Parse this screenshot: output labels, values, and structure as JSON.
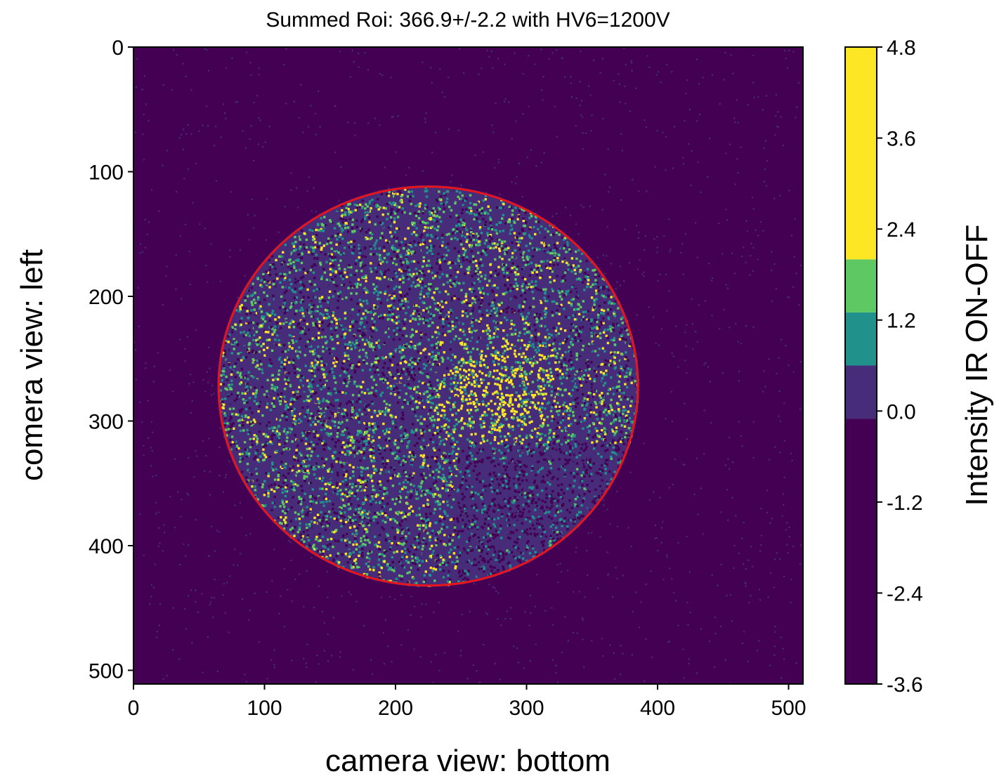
{
  "chart_data": {
    "type": "heatmap",
    "title": "Summed Roi: 366.9+/-2.2 with HV6=1200V",
    "xlabel": "camera view: bottom",
    "ylabel": "comera view: left",
    "xlim": [
      0,
      511
    ],
    "ylim": [
      511,
      0
    ],
    "xticks": [
      "0",
      "100",
      "200",
      "300",
      "400",
      "500"
    ],
    "yticks": [
      "0",
      "100",
      "200",
      "300",
      "400",
      "500"
    ],
    "grid": false,
    "colorbar": {
      "label": "Intensity IR ON-OFF",
      "range": [
        -3.6,
        4.8
      ],
      "ticks": [
        "4.8",
        "3.6",
        "2.4",
        "1.2",
        "0.0",
        "-1.2",
        "-2.4",
        "-3.6"
      ],
      "bands": [
        {
          "from": -3.6,
          "to": -0.1,
          "color": "#440154"
        },
        {
          "from": -0.1,
          "to": 0.6,
          "color": "#472c7a"
        },
        {
          "from": 0.6,
          "to": 1.3,
          "color": "#21918c"
        },
        {
          "from": 1.3,
          "to": 2.0,
          "color": "#5ec962"
        },
        {
          "from": 2.0,
          "to": 4.8,
          "color": "#fde725"
        }
      ]
    },
    "roi_circle": {
      "center_x": 225,
      "center_y": 272,
      "radius": 160,
      "color": "#e8141c"
    },
    "hotspot": {
      "center_x": 278,
      "center_y": 275
    },
    "background_color": "#440154"
  }
}
